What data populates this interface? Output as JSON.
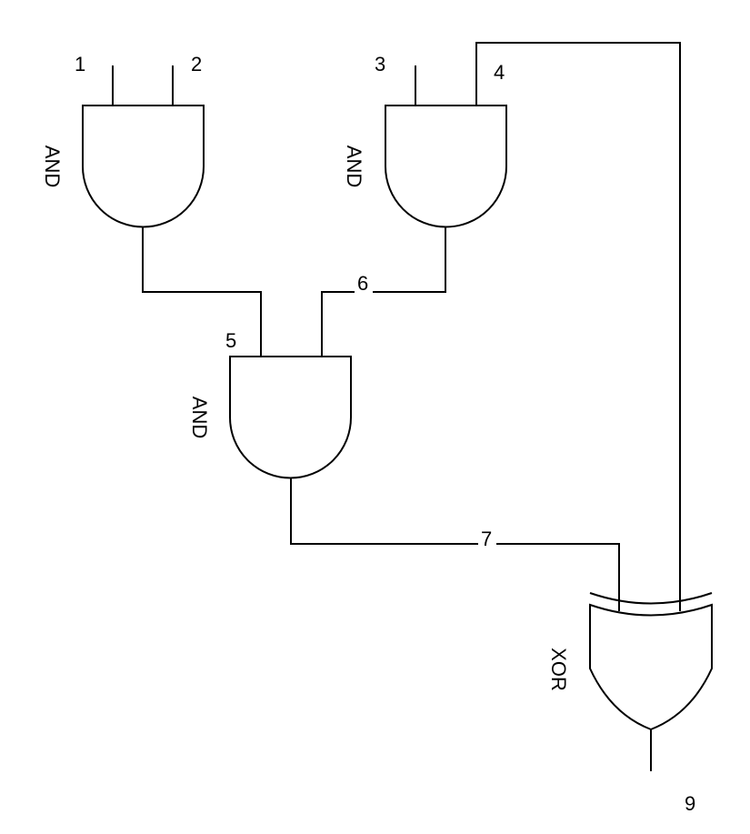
{
  "colors": {
    "background": "#ffffff",
    "stroke": "#000000"
  },
  "gates": {
    "and_top_left": "AND",
    "and_top_right": "AND",
    "and_middle": "AND",
    "xor_output": "XOR"
  },
  "nodes": {
    "n1": "1",
    "n2": "2",
    "n3": "3",
    "n4": "4",
    "n5": "5",
    "n6": "6",
    "n7": "7",
    "n9": "9"
  }
}
